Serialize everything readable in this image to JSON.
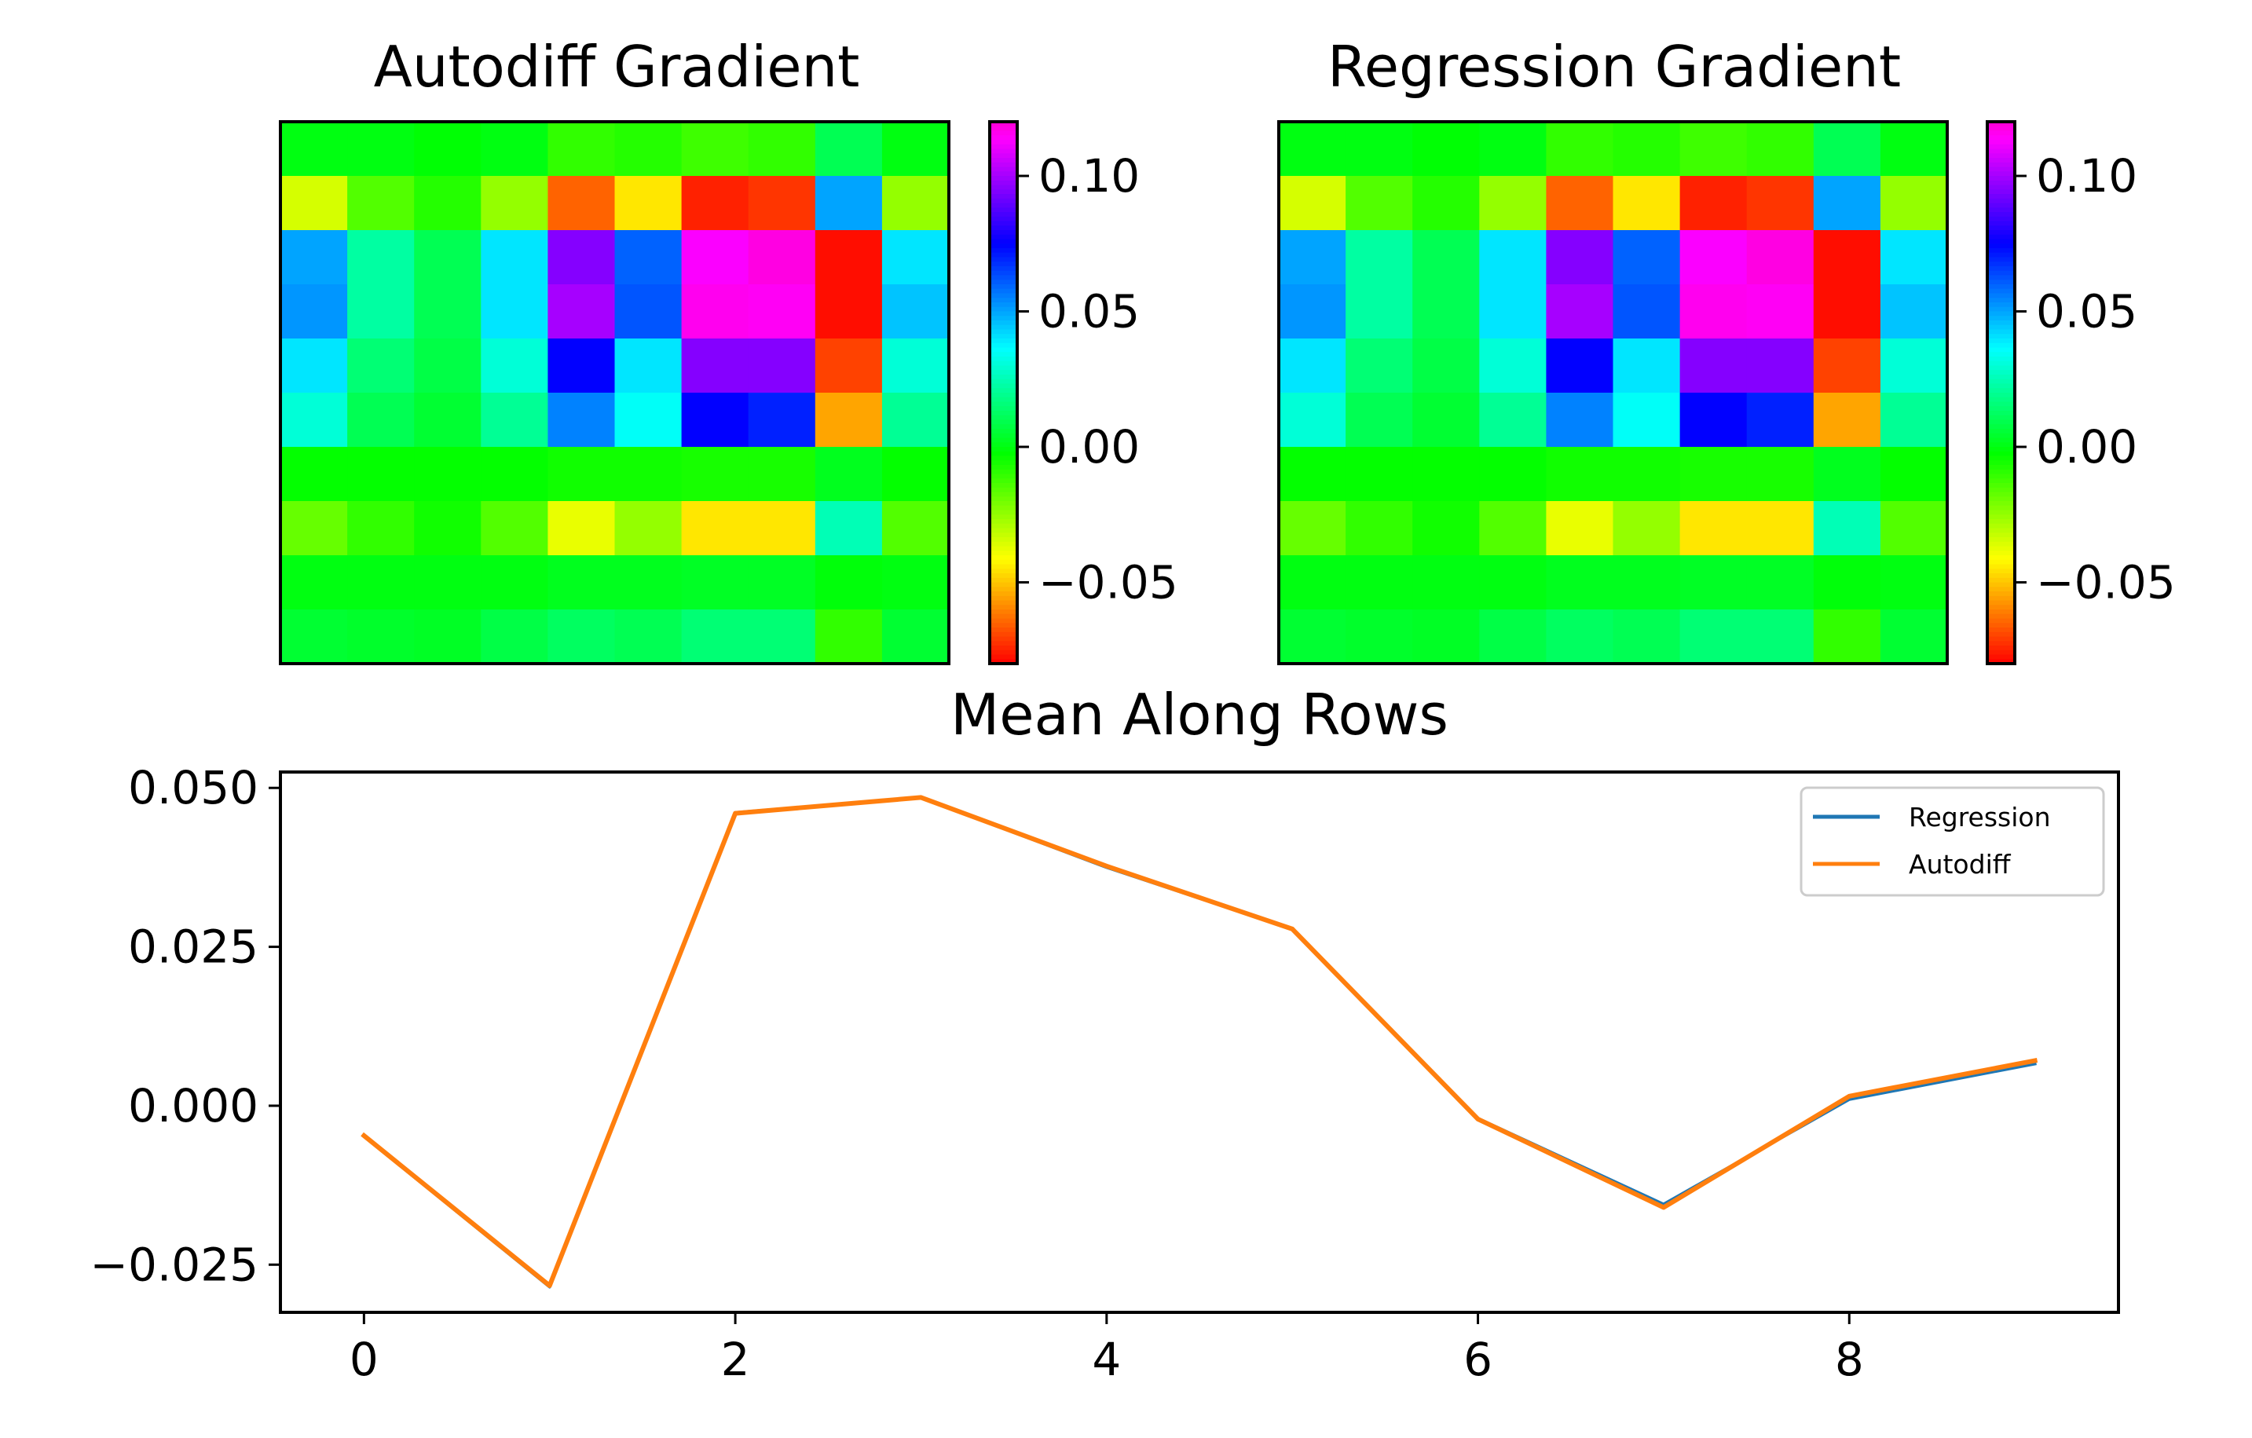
{
  "chart_data": [
    {
      "type": "heatmap",
      "title": "Autodiff Gradient",
      "rows": 10,
      "cols": 10,
      "colormap": "gist_rainbow",
      "clim": [
        -0.08,
        0.12
      ],
      "colorbar_ticks": [
        {
          "value": 0.1,
          "label": "0.10"
        },
        {
          "value": 0.05,
          "label": "0.05"
        },
        {
          "value": 0.0,
          "label": "0.00"
        },
        {
          "value": -0.05,
          "label": "−0.05"
        }
      ],
      "values": [
        [
          0.0,
          0.0,
          -0.002,
          0.0,
          -0.01,
          -0.008,
          -0.012,
          -0.01,
          0.01,
          0.0
        ],
        [
          -0.035,
          -0.015,
          -0.008,
          -0.025,
          -0.065,
          -0.045,
          -0.075,
          -0.072,
          0.05,
          -0.025
        ],
        [
          0.05,
          0.022,
          0.01,
          0.04,
          0.095,
          0.06,
          0.113,
          0.118,
          -0.078,
          0.04
        ],
        [
          0.052,
          0.022,
          0.01,
          0.04,
          0.1,
          0.062,
          0.116,
          0.115,
          -0.078,
          0.045
        ],
        [
          0.04,
          0.015,
          0.008,
          0.03,
          0.075,
          0.04,
          0.095,
          0.095,
          -0.07,
          0.03
        ],
        [
          0.03,
          0.01,
          0.005,
          0.02,
          0.055,
          0.035,
          0.075,
          0.07,
          -0.055,
          0.02
        ],
        [
          -0.003,
          -0.003,
          -0.003,
          -0.003,
          -0.005,
          -0.005,
          -0.006,
          -0.006,
          0.002,
          -0.003
        ],
        [
          -0.018,
          -0.01,
          -0.005,
          -0.015,
          -0.038,
          -0.025,
          -0.045,
          -0.045,
          0.025,
          -0.015
        ],
        [
          0.0,
          0.0,
          0.0,
          0.0,
          0.002,
          0.002,
          0.003,
          0.003,
          -0.001,
          0.0
        ],
        [
          0.005,
          0.004,
          0.003,
          0.008,
          0.012,
          0.01,
          0.015,
          0.015,
          -0.01,
          0.005
        ]
      ]
    },
    {
      "type": "heatmap",
      "title": "Regression Gradient",
      "rows": 10,
      "cols": 10,
      "colormap": "gist_rainbow",
      "clim": [
        -0.08,
        0.12
      ],
      "colorbar_ticks": [
        {
          "value": 0.1,
          "label": "0.10"
        },
        {
          "value": 0.05,
          "label": "0.05"
        },
        {
          "value": 0.0,
          "label": "0.00"
        },
        {
          "value": -0.05,
          "label": "−0.05"
        }
      ],
      "values": [
        [
          0.0,
          0.0,
          -0.002,
          0.0,
          -0.01,
          -0.008,
          -0.012,
          -0.01,
          0.01,
          0.0
        ],
        [
          -0.035,
          -0.015,
          -0.008,
          -0.025,
          -0.065,
          -0.045,
          -0.075,
          -0.072,
          0.05,
          -0.025
        ],
        [
          0.05,
          0.022,
          0.01,
          0.04,
          0.095,
          0.06,
          0.113,
          0.118,
          -0.078,
          0.04
        ],
        [
          0.052,
          0.022,
          0.01,
          0.04,
          0.1,
          0.062,
          0.116,
          0.115,
          -0.078,
          0.045
        ],
        [
          0.04,
          0.015,
          0.008,
          0.03,
          0.075,
          0.04,
          0.095,
          0.095,
          -0.07,
          0.03
        ],
        [
          0.03,
          0.01,
          0.005,
          0.02,
          0.055,
          0.035,
          0.075,
          0.07,
          -0.055,
          0.02
        ],
        [
          -0.003,
          -0.003,
          -0.003,
          -0.003,
          -0.005,
          -0.005,
          -0.006,
          -0.006,
          0.002,
          -0.003
        ],
        [
          -0.018,
          -0.01,
          -0.005,
          -0.015,
          -0.038,
          -0.025,
          -0.045,
          -0.045,
          0.025,
          -0.015
        ],
        [
          0.0,
          0.0,
          0.0,
          0.0,
          0.002,
          0.002,
          0.003,
          0.003,
          -0.001,
          0.0
        ],
        [
          0.005,
          0.004,
          0.003,
          0.008,
          0.012,
          0.01,
          0.015,
          0.015,
          -0.01,
          0.005
        ]
      ]
    },
    {
      "type": "line",
      "title": "Mean Along Rows",
      "x": [
        0,
        1,
        2,
        3,
        4,
        5,
        6,
        7,
        8,
        9
      ],
      "xlim": [
        -0.45,
        9.45
      ],
      "ylim": [
        -0.0325,
        0.0525
      ],
      "xticks": [
        {
          "value": 0,
          "label": "0"
        },
        {
          "value": 2,
          "label": "2"
        },
        {
          "value": 4,
          "label": "4"
        },
        {
          "value": 6,
          "label": "6"
        },
        {
          "value": 8,
          "label": "8"
        }
      ],
      "yticks": [
        {
          "value": 0.05,
          "label": "0.050"
        },
        {
          "value": 0.025,
          "label": "0.025"
        },
        {
          "value": 0.0,
          "label": "0.000"
        },
        {
          "value": -0.025,
          "label": "−0.025"
        }
      ],
      "legend_position": "upper-right",
      "grid": false,
      "series": [
        {
          "name": "Regression",
          "color": "#1f77b4",
          "values": [
            -0.0048,
            -0.0285,
            0.0461,
            0.0485,
            0.0375,
            0.0278,
            -0.002,
            -0.0155,
            0.001,
            0.0066
          ]
        },
        {
          "name": "Autodiff",
          "color": "#ff7f0e",
          "values": [
            -0.0047,
            -0.0283,
            0.046,
            0.0485,
            0.0377,
            0.0278,
            -0.0021,
            -0.016,
            0.0015,
            0.0071
          ]
        }
      ]
    }
  ]
}
